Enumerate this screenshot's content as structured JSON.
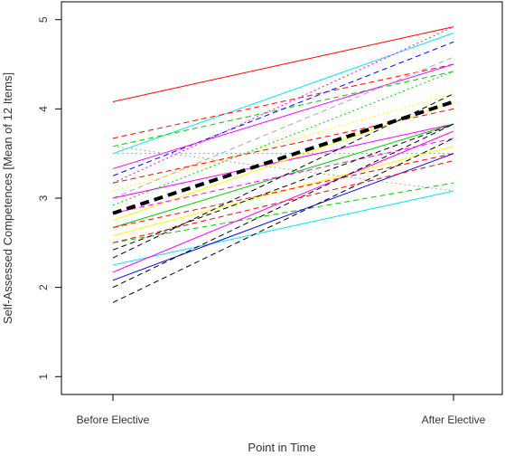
{
  "chart_data": {
    "type": "line",
    "title": "",
    "xlabel": "Point in Time",
    "ylabel": "Self-Assessed Competences [Mean of 12 Items]",
    "categories": [
      "Before Elective",
      "After Elective"
    ],
    "ylim": [
      0.8,
      5.2
    ],
    "yticks": [
      "1",
      "2",
      "3",
      "4",
      "5"
    ],
    "grid": false,
    "legend": "none",
    "mean_line": {
      "values": [
        2.83,
        4.08
      ],
      "color": "#000000",
      "style": "thick-dashed"
    },
    "series": [
      {
        "values": [
          4.08,
          4.92
        ],
        "color": "#ff0000",
        "style": "solid"
      },
      {
        "values": [
          3.5,
          4.85
        ],
        "color": "#00e5ee",
        "style": "solid"
      },
      {
        "values": [
          3.67,
          4.5
        ],
        "color": "#ff0000",
        "style": "dashed"
      },
      {
        "values": [
          3.58,
          4.42
        ],
        "color": "#00cc00",
        "style": "dashed"
      },
      {
        "values": [
          3.25,
          4.75
        ],
        "color": "#0000ff",
        "style": "dashed"
      },
      {
        "values": [
          3.17,
          4.92
        ],
        "color": "#ff00ff",
        "style": "dotted"
      },
      {
        "values": [
          3.33,
          4.5
        ],
        "color": "#ff00ff",
        "style": "solid"
      },
      {
        "values": [
          3.0,
          4.58
        ],
        "color": "#aaaaaa",
        "style": "dashed"
      },
      {
        "values": [
          3.58,
          3.08
        ],
        "color": "#aaaaaa",
        "style": "dotted"
      },
      {
        "values": [
          3.5,
          3.5
        ],
        "color": "#00e5ee",
        "style": "dotted"
      },
      {
        "values": [
          3.08,
          4.17
        ],
        "color": "#ffff00",
        "style": "dotted"
      },
      {
        "values": [
          3.0,
          3.83
        ],
        "color": "#ff00ff",
        "style": "solid"
      },
      {
        "values": [
          2.92,
          4.42
        ],
        "color": "#00cc00",
        "style": "dotted"
      },
      {
        "values": [
          2.75,
          4.08
        ],
        "color": "#ffff00",
        "style": "solid"
      },
      {
        "values": [
          2.67,
          3.83
        ],
        "color": "#00cc00",
        "style": "solid"
      },
      {
        "values": [
          2.83,
          3.67
        ],
        "color": "#ff00ff",
        "style": "dashed"
      },
      {
        "values": [
          2.58,
          3.58
        ],
        "color": "#ffff00",
        "style": "solid"
      },
      {
        "values": [
          2.67,
          3.5
        ],
        "color": "#ff0000",
        "style": "dashed"
      },
      {
        "values": [
          2.5,
          3.17
        ],
        "color": "#00cc00",
        "style": "dashed"
      },
      {
        "values": [
          2.42,
          3.83
        ],
        "color": "#000000",
        "style": "dashed"
      },
      {
        "values": [
          2.33,
          4.17
        ],
        "color": "#000000",
        "style": "dashed"
      },
      {
        "values": [
          2.25,
          3.08
        ],
        "color": "#00e5ee",
        "style": "solid"
      },
      {
        "values": [
          2.17,
          3.75
        ],
        "color": "#ff00ff",
        "style": "solid"
      },
      {
        "values": [
          2.08,
          3.5
        ],
        "color": "#0000ff",
        "style": "solid"
      },
      {
        "values": [
          2.0,
          3.83
        ],
        "color": "#000000",
        "style": "dashed"
      },
      {
        "values": [
          1.83,
          3.67
        ],
        "color": "#000000",
        "style": "dashed"
      },
      {
        "values": [
          2.5,
          3.42
        ],
        "color": "#ff0000",
        "style": "dashed"
      },
      {
        "values": [
          3.17,
          4.0
        ],
        "color": "#ff0000",
        "style": "dashed"
      }
    ]
  }
}
